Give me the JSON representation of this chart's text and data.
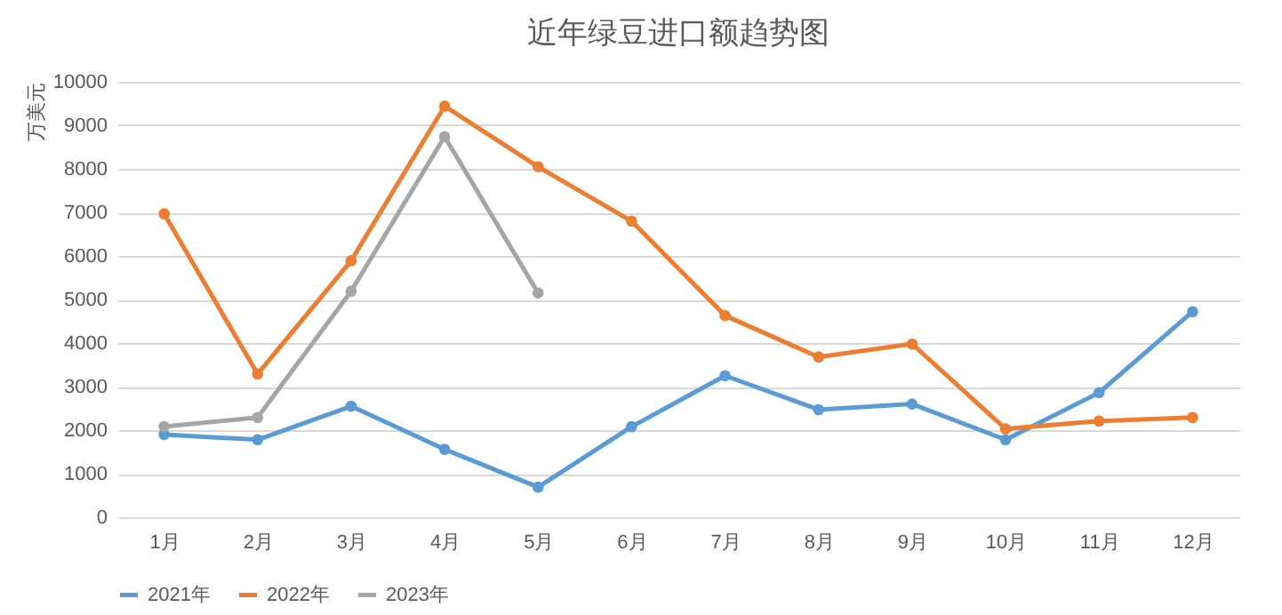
{
  "chart_data": {
    "type": "line",
    "title": "近年绿豆进口额趋势图",
    "ylabel": "万美元",
    "categories": [
      "1月",
      "2月",
      "3月",
      "4月",
      "5月",
      "6月",
      "7月",
      "8月",
      "9月",
      "10月",
      "11月",
      "12月"
    ],
    "series": [
      {
        "name": "2021年",
        "color": "#5b9bd5",
        "values": [
          1900,
          1780,
          2550,
          1560,
          690,
          2080,
          3250,
          2470,
          2600,
          1780,
          2860,
          4720
        ]
      },
      {
        "name": "2022年",
        "color": "#ed7d31",
        "values": [
          6970,
          3290,
          5890,
          9440,
          8050,
          6800,
          4630,
          3680,
          3980,
          2030,
          2210,
          2290
        ]
      },
      {
        "name": "2023年",
        "color": "#a5a5a5",
        "values": [
          2080,
          2290,
          5190,
          8740,
          5150,
          null,
          null,
          null,
          null,
          null,
          null,
          null
        ]
      }
    ],
    "ylim": [
      0,
      10000
    ],
    "yticks": [
      0,
      1000,
      2000,
      3000,
      4000,
      5000,
      6000,
      7000,
      8000,
      9000,
      10000
    ],
    "grid": "y",
    "legend": "bottom",
    "marker": "circle",
    "line_style": "solid"
  }
}
